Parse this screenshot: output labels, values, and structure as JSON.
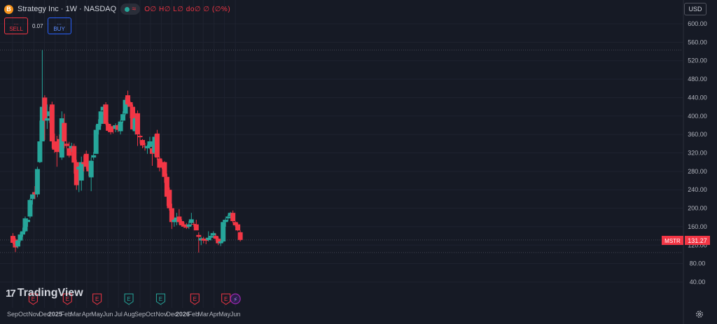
{
  "header": {
    "symbol_title": "Strategy Inc · 1W · NASDAQ",
    "logo_letter": "B",
    "pill_symbol": "≈",
    "ohlc_text": "O∅ H∅ L∅ do∅ ∅ (∅%)",
    "sell_dots": "...",
    "sell_label": "SELL",
    "spread": "0.07",
    "buy_dots": "...",
    "buy_label": "BUY",
    "currency": "USD"
  },
  "branding": {
    "logo_text": "TradingView"
  },
  "price_label": {
    "ticker": "MSTR",
    "value": "131.27",
    "color": "#f23645"
  },
  "colors": {
    "up": "#26a69a",
    "down": "#f23645",
    "background": "#161a25",
    "grid": "#1f2330",
    "axis_text": "#b2b5be",
    "earnings_red": "#f23645",
    "earnings_green": "#26a69a"
  },
  "earnings_markers": [
    {
      "date": "2024-10-30",
      "kind": "red",
      "label": "E"
    },
    {
      "date": "2025-02-05",
      "kind": "red",
      "label": "E"
    },
    {
      "date": "2025-05-01",
      "kind": "red",
      "label": "E"
    },
    {
      "date": "2025-07-31",
      "kind": "green",
      "label": "E"
    },
    {
      "date": "2025-10-30",
      "kind": "green",
      "label": "E"
    },
    {
      "date": "2026-02-05",
      "kind": "red",
      "label": "E"
    },
    {
      "date": "2026-05-05",
      "kind": "red",
      "label": "E"
    },
    {
      "date": "2026-06-01",
      "kind": "purple",
      "label": "⚡"
    }
  ],
  "chart_data": {
    "type": "candlestick",
    "title": "Strategy Inc · 1W · NASDAQ",
    "ylim": [
      0,
      620
    ],
    "y_ticks": [
      40,
      80,
      120,
      160,
      200,
      240,
      280,
      320,
      360,
      400,
      440,
      480,
      520,
      560,
      600
    ],
    "y_tick_labels": [
      "40.00",
      "80.00",
      "120.00",
      "160.00",
      "200.00",
      "240.00",
      "280.00",
      "320.00",
      "360.00",
      "400.00",
      "440.00",
      "480.00",
      "520.00",
      "560.00",
      "600.00"
    ],
    "x_ticks": [
      {
        "label": "Sep",
        "date": "2024-09-01"
      },
      {
        "label": "Oct",
        "date": "2024-10-01"
      },
      {
        "label": "Nov",
        "date": "2024-11-01"
      },
      {
        "label": "Dec",
        "date": "2024-12-01"
      },
      {
        "label": "2025",
        "date": "2025-01-01",
        "bold": true
      },
      {
        "label": "Feb",
        "date": "2025-02-01"
      },
      {
        "label": "Mar",
        "date": "2025-03-01"
      },
      {
        "label": "Apr",
        "date": "2025-04-01"
      },
      {
        "label": "May",
        "date": "2025-05-01"
      },
      {
        "label": "Jun",
        "date": "2025-06-01"
      },
      {
        "label": "Jul",
        "date": "2025-07-01"
      },
      {
        "label": "Aug",
        "date": "2025-08-01"
      },
      {
        "label": "Sep",
        "date": "2025-09-01"
      },
      {
        "label": "Oct",
        "date": "2025-10-01"
      },
      {
        "label": "Nov",
        "date": "2025-11-01"
      },
      {
        "label": "Dec",
        "date": "2025-12-01"
      },
      {
        "label": "2026",
        "date": "2026-01-01",
        "bold": true
      },
      {
        "label": "Feb",
        "date": "2026-02-01"
      },
      {
        "label": "Mar",
        "date": "2026-03-01"
      },
      {
        "label": "Apr",
        "date": "2026-04-01"
      },
      {
        "label": "May",
        "date": "2026-05-01"
      },
      {
        "label": "Jun",
        "date": "2026-06-01"
      }
    ],
    "reference_lines": [
      {
        "value": 543,
        "style": "dotted",
        "note": "highest high"
      },
      {
        "value": 131.27,
        "style": "dotted",
        "note": "last price"
      },
      {
        "value": 104,
        "style": "dotted",
        "note": "lowest low"
      }
    ],
    "candles": [
      {
        "date": "2024-08-26",
        "o": 140,
        "h": 146,
        "l": 122,
        "c": 125
      },
      {
        "date": "2024-09-02",
        "o": 132,
        "h": 135,
        "l": 105,
        "c": 115
      },
      {
        "date": "2024-09-09",
        "o": 117,
        "h": 132,
        "l": 113,
        "c": 130
      },
      {
        "date": "2024-09-16",
        "o": 130,
        "h": 148,
        "l": 126,
        "c": 143
      },
      {
        "date": "2024-09-23",
        "o": 143,
        "h": 158,
        "l": 138,
        "c": 150
      },
      {
        "date": "2024-09-30",
        "o": 150,
        "h": 182,
        "l": 148,
        "c": 178
      },
      {
        "date": "2024-10-07",
        "o": 170,
        "h": 178,
        "l": 160,
        "c": 175
      },
      {
        "date": "2024-10-14",
        "o": 182,
        "h": 221,
        "l": 178,
        "c": 218
      },
      {
        "date": "2024-10-21",
        "o": 220,
        "h": 235,
        "l": 208,
        "c": 230
      },
      {
        "date": "2024-10-28",
        "o": 235,
        "h": 248,
        "l": 220,
        "c": 230
      },
      {
        "date": "2024-11-04",
        "o": 230,
        "h": 290,
        "l": 224,
        "c": 285
      },
      {
        "date": "2024-11-11",
        "o": 300,
        "h": 390,
        "l": 298,
        "c": 345
      },
      {
        "date": "2024-11-18",
        "o": 345,
        "h": 543,
        "l": 345,
        "c": 420
      },
      {
        "date": "2024-11-25",
        "o": 440,
        "h": 445,
        "l": 348,
        "c": 390
      },
      {
        "date": "2024-12-02",
        "o": 390,
        "h": 425,
        "l": 372,
        "c": 395
      },
      {
        "date": "2024-12-09",
        "o": 400,
        "h": 420,
        "l": 385,
        "c": 410
      },
      {
        "date": "2024-12-16",
        "o": 425,
        "h": 431,
        "l": 330,
        "c": 345
      },
      {
        "date": "2024-12-23",
        "o": 345,
        "h": 362,
        "l": 320,
        "c": 327
      },
      {
        "date": "2024-12-30",
        "o": 337,
        "h": 357,
        "l": 290,
        "c": 322
      },
      {
        "date": "2025-01-06",
        "o": 350,
        "h": 360,
        "l": 320,
        "c": 325
      },
      {
        "date": "2025-01-13",
        "o": 310,
        "h": 410,
        "l": 305,
        "c": 395
      },
      {
        "date": "2025-01-20",
        "o": 385,
        "h": 405,
        "l": 330,
        "c": 345
      },
      {
        "date": "2025-01-27",
        "o": 340,
        "h": 345,
        "l": 330,
        "c": 335
      },
      {
        "date": "2025-02-03",
        "o": 330,
        "h": 344,
        "l": 310,
        "c": 314
      },
      {
        "date": "2025-02-10",
        "o": 330,
        "h": 342,
        "l": 322,
        "c": 335
      },
      {
        "date": "2025-02-17",
        "o": 335,
        "h": 340,
        "l": 275,
        "c": 299
      },
      {
        "date": "2025-02-24",
        "o": 300,
        "h": 305,
        "l": 240,
        "c": 250
      },
      {
        "date": "2025-03-03",
        "o": 284,
        "h": 292,
        "l": 235,
        "c": 290
      },
      {
        "date": "2025-03-10",
        "o": 260,
        "h": 312,
        "l": 238,
        "c": 300
      },
      {
        "date": "2025-03-17",
        "o": 300,
        "h": 315,
        "l": 280,
        "c": 296
      },
      {
        "date": "2025-03-24",
        "o": 318,
        "h": 325,
        "l": 285,
        "c": 290
      },
      {
        "date": "2025-03-31",
        "o": 292,
        "h": 300,
        "l": 270,
        "c": 280
      },
      {
        "date": "2025-04-07",
        "o": 267,
        "h": 310,
        "l": 237,
        "c": 303
      },
      {
        "date": "2025-04-14",
        "o": 310,
        "h": 322,
        "l": 305,
        "c": 315
      },
      {
        "date": "2025-04-21",
        "o": 318,
        "h": 380,
        "l": 318,
        "c": 370
      },
      {
        "date": "2025-04-28",
        "o": 370,
        "h": 393,
        "l": 360,
        "c": 383
      },
      {
        "date": "2025-05-05",
        "o": 383,
        "h": 420,
        "l": 378,
        "c": 410
      },
      {
        "date": "2025-05-12",
        "o": 412,
        "h": 425,
        "l": 402,
        "c": 420
      },
      {
        "date": "2025-05-19",
        "o": 425,
        "h": 430,
        "l": 380,
        "c": 383
      },
      {
        "date": "2025-05-26",
        "o": 383,
        "h": 386,
        "l": 365,
        "c": 368
      },
      {
        "date": "2025-06-02",
        "o": 378,
        "h": 382,
        "l": 360,
        "c": 365
      },
      {
        "date": "2025-06-09",
        "o": 375,
        "h": 380,
        "l": 362,
        "c": 372
      },
      {
        "date": "2025-06-16",
        "o": 372,
        "h": 384,
        "l": 365,
        "c": 380
      },
      {
        "date": "2025-06-23",
        "o": 380,
        "h": 383,
        "l": 365,
        "c": 370
      },
      {
        "date": "2025-06-30",
        "o": 367,
        "h": 392,
        "l": 360,
        "c": 388
      },
      {
        "date": "2025-07-07",
        "o": 390,
        "h": 410,
        "l": 385,
        "c": 404
      },
      {
        "date": "2025-07-14",
        "o": 405,
        "h": 440,
        "l": 402,
        "c": 435
      },
      {
        "date": "2025-07-21",
        "o": 445,
        "h": 455,
        "l": 420,
        "c": 425
      },
      {
        "date": "2025-07-28",
        "o": 430,
        "h": 432,
        "l": 395,
        "c": 420
      },
      {
        "date": "2025-08-04",
        "o": 420,
        "h": 425,
        "l": 370,
        "c": 371
      },
      {
        "date": "2025-08-11",
        "o": 367,
        "h": 400,
        "l": 360,
        "c": 395
      },
      {
        "date": "2025-08-18",
        "o": 406,
        "h": 412,
        "l": 335,
        "c": 360
      },
      {
        "date": "2025-08-25",
        "o": 357,
        "h": 360,
        "l": 340,
        "c": 354
      },
      {
        "date": "2025-09-01",
        "o": 348,
        "h": 350,
        "l": 330,
        "c": 336
      },
      {
        "date": "2025-09-08",
        "o": 334,
        "h": 342,
        "l": 325,
        "c": 333
      },
      {
        "date": "2025-09-15",
        "o": 330,
        "h": 338,
        "l": 318,
        "c": 335
      },
      {
        "date": "2025-09-22",
        "o": 333,
        "h": 355,
        "l": 328,
        "c": 345
      },
      {
        "date": "2025-09-29",
        "o": 330,
        "h": 336,
        "l": 292,
        "c": 318
      },
      {
        "date": "2025-10-06",
        "o": 320,
        "h": 360,
        "l": 312,
        "c": 355
      },
      {
        "date": "2025-10-13",
        "o": 362,
        "h": 370,
        "l": 305,
        "c": 310
      },
      {
        "date": "2025-10-20",
        "o": 308,
        "h": 312,
        "l": 280,
        "c": 288
      },
      {
        "date": "2025-10-27",
        "o": 300,
        "h": 305,
        "l": 285,
        "c": 290
      },
      {
        "date": "2025-11-03",
        "o": 300,
        "h": 302,
        "l": 255,
        "c": 268
      },
      {
        "date": "2025-11-10",
        "o": 268,
        "h": 275,
        "l": 205,
        "c": 225
      },
      {
        "date": "2025-11-17",
        "o": 240,
        "h": 245,
        "l": 195,
        "c": 200
      },
      {
        "date": "2025-11-24",
        "o": 200,
        "h": 210,
        "l": 155,
        "c": 170
      },
      {
        "date": "2025-12-01",
        "o": 170,
        "h": 178,
        "l": 160,
        "c": 175
      },
      {
        "date": "2025-12-08",
        "o": 170,
        "h": 190,
        "l": 163,
        "c": 180
      },
      {
        "date": "2025-12-15",
        "o": 182,
        "h": 198,
        "l": 165,
        "c": 170
      },
      {
        "date": "2025-12-22",
        "o": 172,
        "h": 176,
        "l": 160,
        "c": 163
      },
      {
        "date": "2025-12-29",
        "o": 165,
        "h": 170,
        "l": 157,
        "c": 160
      },
      {
        "date": "2026-01-05",
        "o": 160,
        "h": 168,
        "l": 155,
        "c": 158
      },
      {
        "date": "2026-01-12",
        "o": 160,
        "h": 172,
        "l": 155,
        "c": 165
      },
      {
        "date": "2026-01-19",
        "o": 168,
        "h": 190,
        "l": 162,
        "c": 176
      },
      {
        "date": "2026-01-26",
        "o": 166,
        "h": 170,
        "l": 160,
        "c": 165
      },
      {
        "date": "2026-02-02",
        "o": 165,
        "h": 175,
        "l": 158,
        "c": 152
      },
      {
        "date": "2026-02-09",
        "o": 142,
        "h": 148,
        "l": 104,
        "c": 138
      },
      {
        "date": "2026-02-16",
        "o": 130,
        "h": 138,
        "l": 120,
        "c": 135
      },
      {
        "date": "2026-02-23",
        "o": 134,
        "h": 138,
        "l": 124,
        "c": 130
      },
      {
        "date": "2026-03-02",
        "o": 131,
        "h": 136,
        "l": 122,
        "c": 130
      },
      {
        "date": "2026-03-09",
        "o": 131,
        "h": 150,
        "l": 128,
        "c": 136
      },
      {
        "date": "2026-03-16",
        "o": 136,
        "h": 146,
        "l": 130,
        "c": 140
      },
      {
        "date": "2026-03-23",
        "o": 141,
        "h": 150,
        "l": 136,
        "c": 146
      },
      {
        "date": "2026-03-30",
        "o": 140,
        "h": 145,
        "l": 130,
        "c": 134
      },
      {
        "date": "2026-04-06",
        "o": 134,
        "h": 138,
        "l": 120,
        "c": 124
      },
      {
        "date": "2026-04-13",
        "o": 124,
        "h": 130,
        "l": 118,
        "c": 128
      },
      {
        "date": "2026-04-20",
        "o": 128,
        "h": 175,
        "l": 126,
        "c": 170
      },
      {
        "date": "2026-04-27",
        "o": 170,
        "h": 178,
        "l": 160,
        "c": 175
      },
      {
        "date": "2026-05-04",
        "o": 178,
        "h": 186,
        "l": 172,
        "c": 182
      },
      {
        "date": "2026-05-11",
        "o": 183,
        "h": 192,
        "l": 180,
        "c": 190
      },
      {
        "date": "2026-05-18",
        "o": 190,
        "h": 195,
        "l": 168,
        "c": 172
      },
      {
        "date": "2026-05-25",
        "o": 170,
        "h": 172,
        "l": 160,
        "c": 163
      },
      {
        "date": "2026-06-01",
        "o": 165,
        "h": 168,
        "l": 150,
        "c": 152
      },
      {
        "date": "2026-06-08",
        "o": 148,
        "h": 152,
        "l": 128,
        "c": 131.27
      }
    ]
  }
}
